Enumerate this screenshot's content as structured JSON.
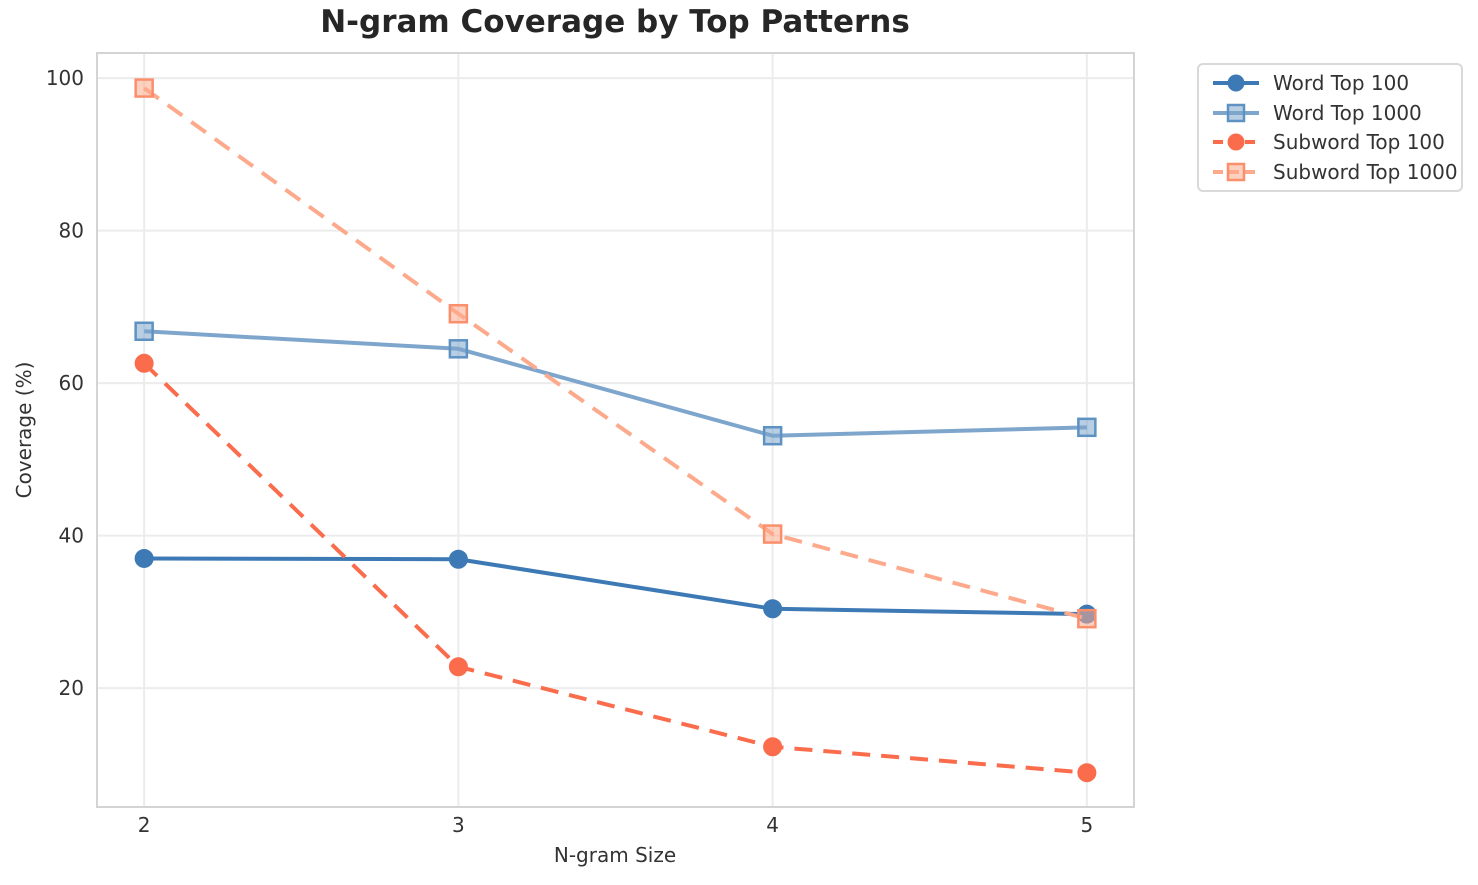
{
  "page": {
    "background_color": "#ffffff",
    "text_color": "#333333",
    "title_color": "#262626",
    "grid_color": "#ececec",
    "spine_color": "#d4d4d4"
  },
  "chart_data": {
    "type": "line",
    "title": "N-gram Coverage by Top Patterns",
    "xlabel": "N-gram Size",
    "ylabel": "Coverage (%)",
    "x": [
      2,
      3,
      4,
      5
    ],
    "x_ticks": [
      2,
      3,
      4,
      5
    ],
    "y_ticks": [
      20,
      40,
      60,
      80,
      100
    ],
    "xlim": [
      1.85,
      5.15
    ],
    "ylim": [
      4.4,
      103.3
    ],
    "grid": true,
    "legend_position": "outside-upper-right",
    "series": [
      {
        "name": "Word Top 100",
        "color": "#3d7ab5",
        "marker_edge": "#3d7ab5",
        "line_style": "solid",
        "marker": "circle",
        "values": [
          37.0,
          36.9,
          30.4,
          29.7
        ]
      },
      {
        "name": "Word Top 1000",
        "color": "#7ea6cc",
        "marker_edge": "#5e92c3",
        "line_style": "solid",
        "marker": "square",
        "values": [
          66.8,
          64.5,
          53.1,
          54.2
        ]
      },
      {
        "name": "Subword Top 100",
        "color": "#fa6c4c",
        "marker_edge": "#fa6c4c",
        "line_style": "dashed",
        "marker": "circle",
        "values": [
          62.6,
          22.8,
          12.3,
          8.9
        ]
      },
      {
        "name": "Subword Top 1000",
        "color": "#fda98c",
        "marker_edge": "#fb8e6b",
        "line_style": "dashed",
        "marker": "square",
        "values": [
          98.7,
          69.1,
          40.2,
          29.1
        ]
      }
    ]
  }
}
